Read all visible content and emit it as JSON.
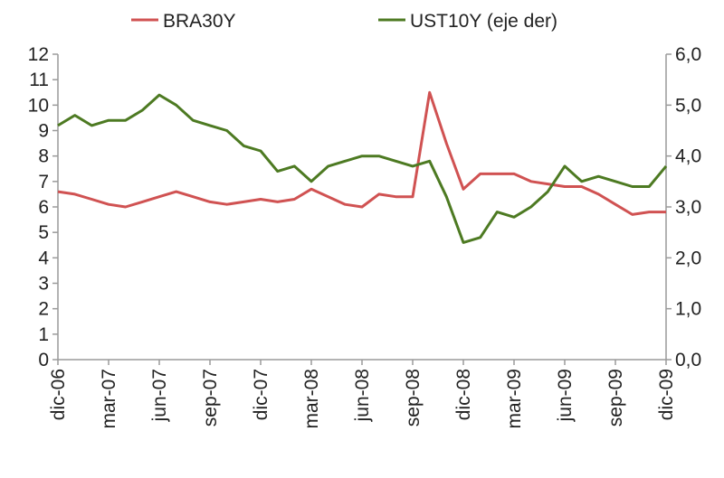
{
  "chart_data": {
    "type": "line",
    "title": "",
    "xlabel": "",
    "ylabel": "",
    "y2label": "",
    "legend_position": "top",
    "grid": false,
    "x_tick_labels": [
      "dic-06",
      "mar-07",
      "jun-07",
      "sep-07",
      "dic-07",
      "mar-08",
      "jun-08",
      "sep-08",
      "dic-08",
      "mar-09",
      "jun-09",
      "sep-09",
      "dic-09"
    ],
    "y_left": {
      "lim": [
        0,
        12
      ],
      "ticks": [
        "0",
        "1",
        "2",
        "3",
        "4",
        "5",
        "6",
        "7",
        "8",
        "9",
        "10",
        "11",
        "12"
      ]
    },
    "y_right": {
      "lim": [
        0,
        6
      ],
      "ticks": [
        "0,0",
        "1,0",
        "2,0",
        "3,0",
        "4,0",
        "5,0",
        "6,0"
      ]
    },
    "series": [
      {
        "name": "BRA30Y",
        "axis": "left",
        "color": "#d05252",
        "x": [
          "2006-12",
          "2007-01",
          "2007-02",
          "2007-03",
          "2007-04",
          "2007-05",
          "2007-06",
          "2007-07",
          "2007-08",
          "2007-09",
          "2007-10",
          "2007-11",
          "2007-12",
          "2008-01",
          "2008-02",
          "2008-03",
          "2008-04",
          "2008-05",
          "2008-06",
          "2008-07",
          "2008-08",
          "2008-09",
          "2008-10",
          "2008-11",
          "2008-12",
          "2009-01",
          "2009-02",
          "2009-03",
          "2009-04",
          "2009-05",
          "2009-06",
          "2009-07",
          "2009-08",
          "2009-09",
          "2009-10",
          "2009-11",
          "2009-12"
        ],
        "values": [
          6.6,
          6.5,
          6.3,
          6.1,
          6.0,
          6.2,
          6.4,
          6.6,
          6.4,
          6.2,
          6.1,
          6.2,
          6.3,
          6.2,
          6.3,
          6.7,
          6.4,
          6.1,
          6.0,
          6.5,
          6.4,
          6.4,
          10.5,
          8.5,
          6.7,
          7.3,
          7.3,
          7.3,
          7.0,
          6.9,
          6.8,
          6.8,
          6.5,
          6.1,
          5.7,
          5.8,
          5.8
        ]
      },
      {
        "name": "UST10Y (eje der)",
        "axis": "right",
        "color": "#4d7a22",
        "x": [
          "2006-12",
          "2007-01",
          "2007-02",
          "2007-03",
          "2007-04",
          "2007-05",
          "2007-06",
          "2007-07",
          "2007-08",
          "2007-09",
          "2007-10",
          "2007-11",
          "2007-12",
          "2008-01",
          "2008-02",
          "2008-03",
          "2008-04",
          "2008-05",
          "2008-06",
          "2008-07",
          "2008-08",
          "2008-09",
          "2008-10",
          "2008-11",
          "2008-12",
          "2009-01",
          "2009-02",
          "2009-03",
          "2009-04",
          "2009-05",
          "2009-06",
          "2009-07",
          "2009-08",
          "2009-09",
          "2009-10",
          "2009-11",
          "2009-12"
        ],
        "values": [
          4.6,
          4.8,
          4.6,
          4.7,
          4.7,
          4.9,
          5.2,
          5.0,
          4.7,
          4.6,
          4.5,
          4.2,
          4.1,
          3.7,
          3.8,
          3.5,
          3.8,
          3.9,
          4.0,
          4.0,
          3.9,
          3.8,
          3.9,
          3.2,
          2.3,
          2.4,
          2.9,
          2.8,
          3.0,
          3.3,
          3.8,
          3.5,
          3.6,
          3.5,
          3.4,
          3.4,
          3.8
        ]
      }
    ]
  }
}
